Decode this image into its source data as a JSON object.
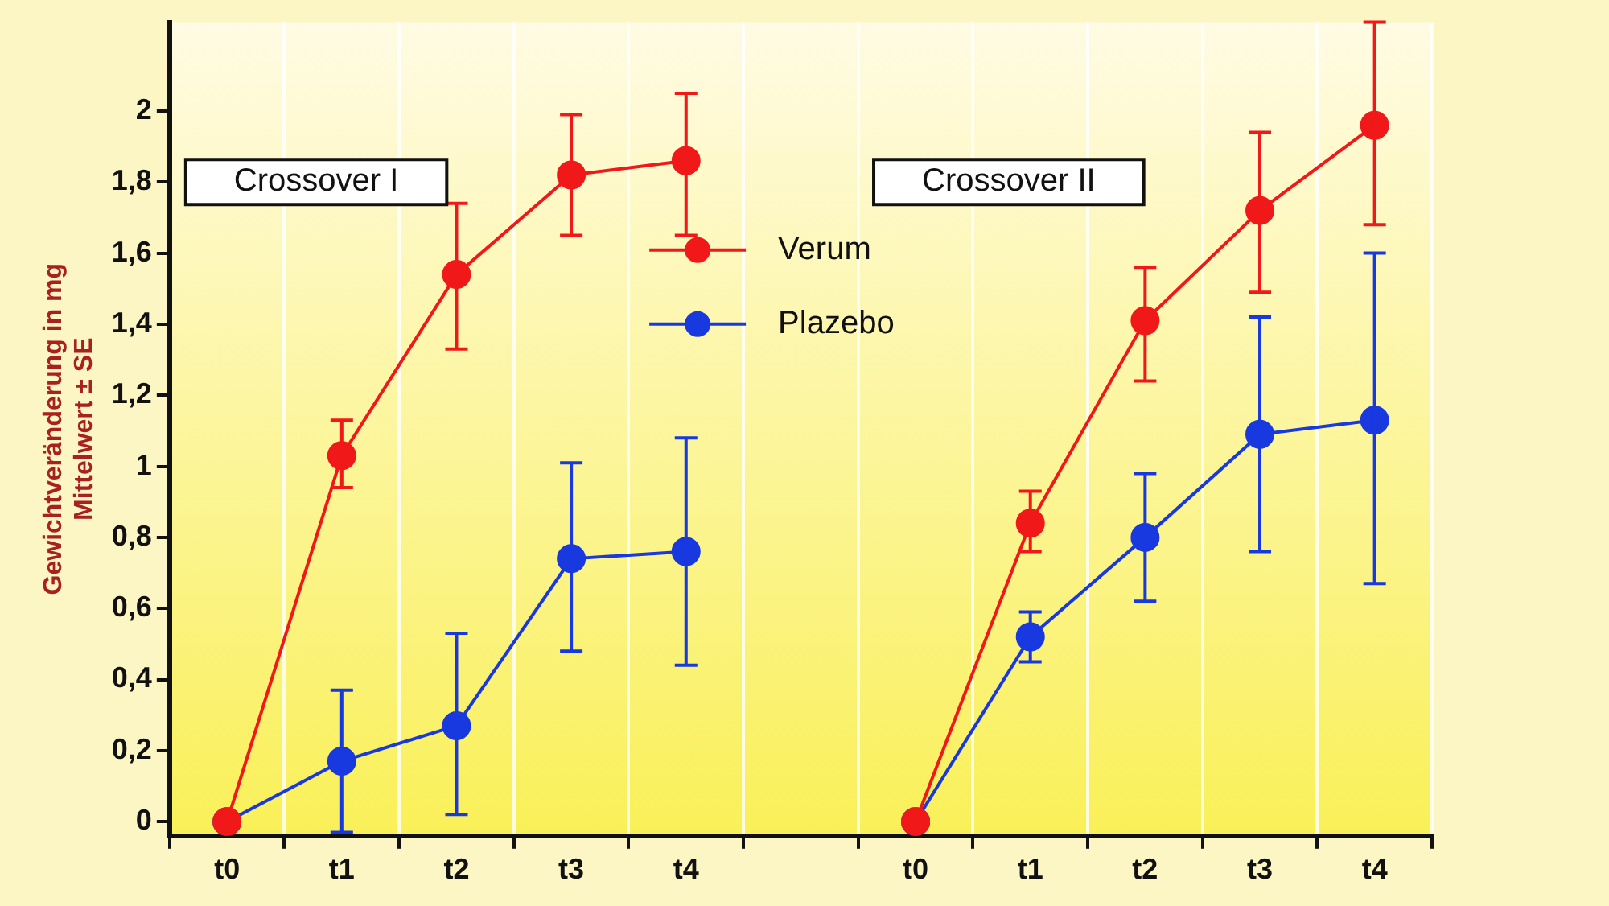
{
  "chart_data": {
    "type": "line",
    "ylabel": "Gewichtveränderung in mg\nMittelwert ± SE",
    "categories": [
      "t0",
      "t1",
      "t2",
      "t3",
      "t4",
      null,
      "t0",
      "t1",
      "t2",
      "t3",
      "t4"
    ],
    "series": [
      {
        "name": "Verum",
        "color": "#f01818",
        "values": [
          0,
          1.03,
          1.54,
          1.82,
          1.86,
          null,
          0,
          0.84,
          1.41,
          1.72,
          1.96
        ],
        "errors": [
          null,
          [
            0.94,
            1.13
          ],
          [
            1.33,
            1.74
          ],
          [
            1.65,
            1.99
          ],
          [
            1.65,
            2.05
          ],
          null,
          null,
          [
            0.76,
            0.93
          ],
          [
            1.24,
            1.56
          ],
          [
            1.49,
            1.94
          ],
          [
            1.68,
            2.25
          ]
        ]
      },
      {
        "name": "Plazebo",
        "color": "#1838e0",
        "values": [
          0,
          0.17,
          0.27,
          0.74,
          0.76,
          null,
          0,
          0.52,
          0.8,
          1.09,
          1.13
        ],
        "errors": [
          null,
          [
            -0.03,
            0.37
          ],
          [
            0.02,
            0.53
          ],
          [
            0.48,
            1.01
          ],
          [
            0.44,
            1.08
          ],
          null,
          null,
          [
            0.45,
            0.59
          ],
          [
            0.62,
            0.98
          ],
          [
            0.76,
            1.42
          ],
          [
            0.67,
            1.6
          ]
        ]
      }
    ],
    "ylim": [
      -0.04,
      2.25
    ],
    "yticks": [
      0,
      {
        "value": 0.2,
        "label": "0,2"
      },
      {
        "value": 0.4,
        "label": "0,4"
      },
      {
        "value": 0.6,
        "label": "0,6"
      },
      {
        "value": 0.8,
        "label": "0,8"
      },
      1,
      {
        "value": 1.2,
        "label": "1,2"
      },
      {
        "value": 1.4,
        "label": "1,4"
      },
      {
        "value": 1.6,
        "label": "1,6"
      },
      {
        "value": 1.8,
        "label": "1,8"
      },
      2
    ],
    "annotations": [
      "Crossover I",
      "Crossover II"
    ],
    "grid": "x",
    "legend": "center",
    "marker": "circle",
    "line_style": "solid"
  }
}
